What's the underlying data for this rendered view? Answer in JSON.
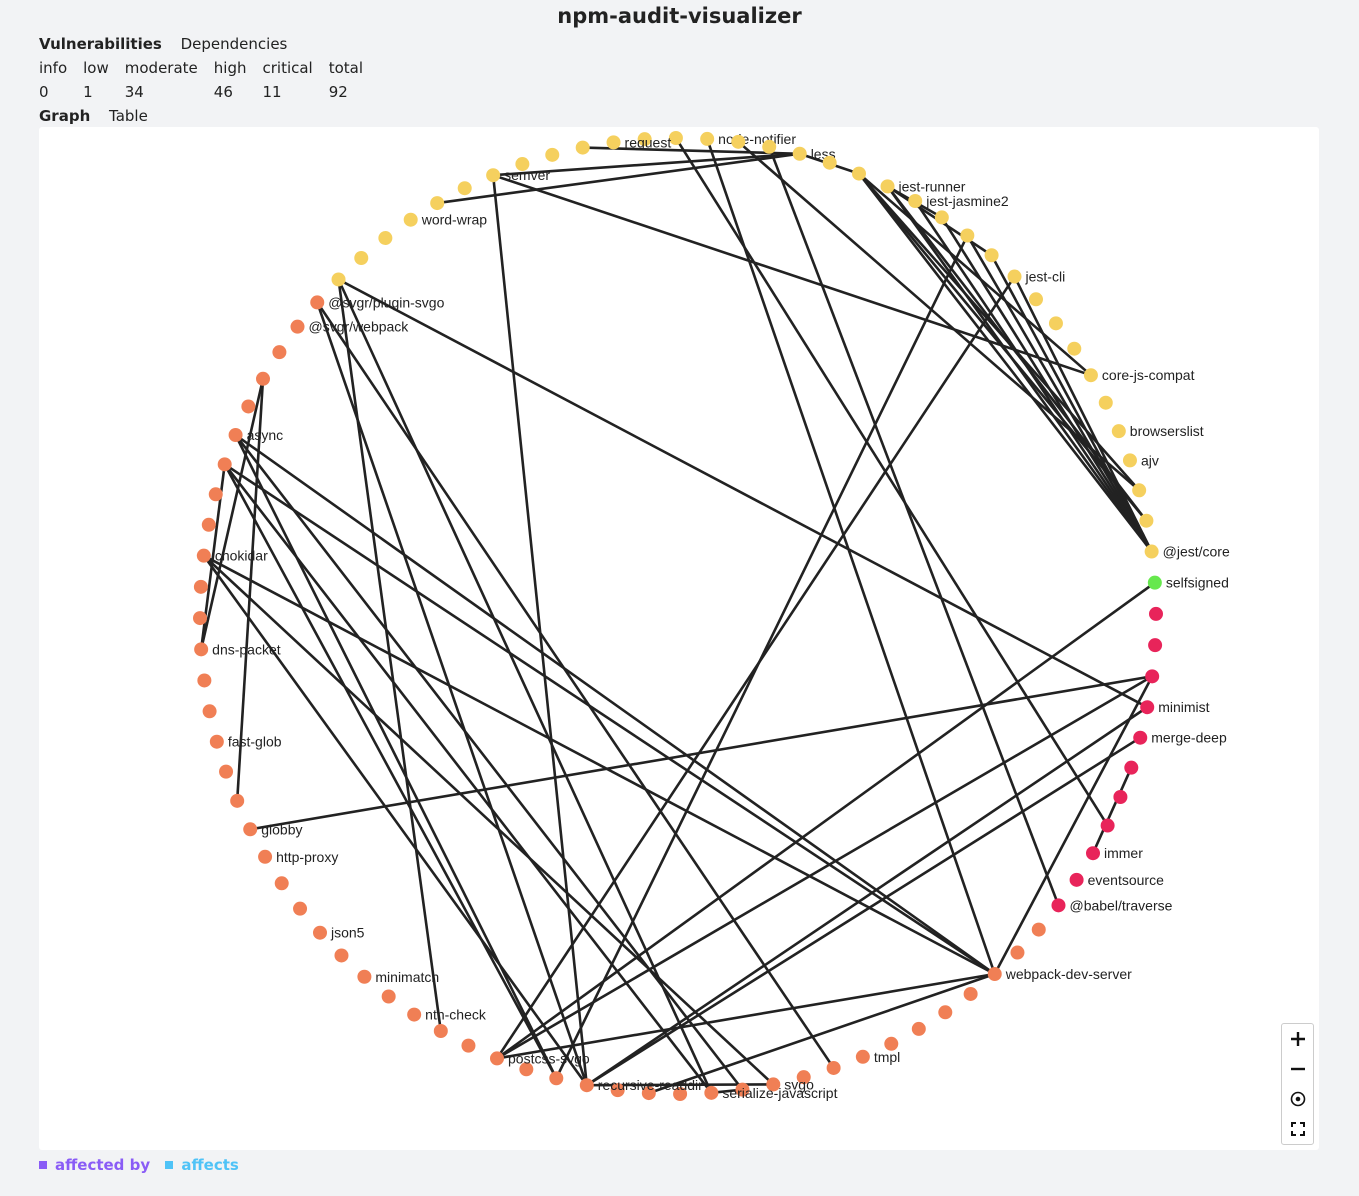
{
  "app": {
    "title": "npm-audit-visualizer"
  },
  "main_tabs": [
    {
      "label": "Vulnerabilities",
      "active": true
    },
    {
      "label": "Dependencies",
      "active": false
    }
  ],
  "stats": {
    "headers": [
      "info",
      "low",
      "moderate",
      "high",
      "critical",
      "total"
    ],
    "values": [
      "0",
      "1",
      "34",
      "46",
      "11",
      "92"
    ]
  },
  "view_tabs": [
    {
      "label": "Graph",
      "active": true
    },
    {
      "label": "Table",
      "active": false
    }
  ],
  "graph": {
    "colors": {
      "low": "#f5d05e",
      "moderate": "#f07f55",
      "high": "#e8245a",
      "info": "#66e84d",
      "edge": "#222222"
    },
    "nodes": [
      {
        "label": "",
        "severity": "low"
      },
      {
        "label": "",
        "severity": "low"
      },
      {
        "label": "node-notifier",
        "severity": "low"
      },
      {
        "label": "",
        "severity": "low"
      },
      {
        "label": "",
        "severity": "low"
      },
      {
        "label": "less",
        "severity": "low"
      },
      {
        "label": "",
        "severity": "low"
      },
      {
        "label": "",
        "severity": "low"
      },
      {
        "label": "jest-runner",
        "severity": "low"
      },
      {
        "label": "jest-jasmine2",
        "severity": "low"
      },
      {
        "label": "",
        "severity": "low"
      },
      {
        "label": "",
        "severity": "low"
      },
      {
        "label": "",
        "severity": "low"
      },
      {
        "label": "jest-cli",
        "severity": "low"
      },
      {
        "label": "",
        "severity": "low"
      },
      {
        "label": "",
        "severity": "low"
      },
      {
        "label": "",
        "severity": "low"
      },
      {
        "label": "core-js-compat",
        "severity": "low"
      },
      {
        "label": "",
        "severity": "low"
      },
      {
        "label": "browserslist",
        "severity": "low"
      },
      {
        "label": "ajv",
        "severity": "low"
      },
      {
        "label": "",
        "severity": "low"
      },
      {
        "label": "",
        "severity": "low"
      },
      {
        "label": "@jest/core",
        "severity": "low"
      },
      {
        "label": "selfsigned",
        "severity": "info"
      },
      {
        "label": "",
        "severity": "high"
      },
      {
        "label": "",
        "severity": "high"
      },
      {
        "label": "",
        "severity": "high"
      },
      {
        "label": "minimist",
        "severity": "high"
      },
      {
        "label": "merge-deep",
        "severity": "high"
      },
      {
        "label": "",
        "severity": "high"
      },
      {
        "label": "",
        "severity": "high"
      },
      {
        "label": "",
        "severity": "high"
      },
      {
        "label": "immer",
        "severity": "high"
      },
      {
        "label": "eventsource",
        "severity": "high"
      },
      {
        "label": "@babel/traverse",
        "severity": "high"
      },
      {
        "label": "",
        "severity": "moderate"
      },
      {
        "label": "",
        "severity": "moderate"
      },
      {
        "label": "webpack-dev-server",
        "severity": "moderate"
      },
      {
        "label": "",
        "severity": "moderate"
      },
      {
        "label": "",
        "severity": "moderate"
      },
      {
        "label": "",
        "severity": "moderate"
      },
      {
        "label": "",
        "severity": "moderate"
      },
      {
        "label": "tmpl",
        "severity": "moderate"
      },
      {
        "label": "",
        "severity": "moderate"
      },
      {
        "label": "",
        "severity": "moderate"
      },
      {
        "label": "svgo",
        "severity": "moderate"
      },
      {
        "label": "",
        "severity": "moderate"
      },
      {
        "label": "serialize-javascript",
        "severity": "moderate"
      },
      {
        "label": "",
        "severity": "moderate"
      },
      {
        "label": "",
        "severity": "moderate"
      },
      {
        "label": "",
        "severity": "moderate"
      },
      {
        "label": "recursive-readdir",
        "severity": "moderate"
      },
      {
        "label": "",
        "severity": "moderate"
      },
      {
        "label": "",
        "severity": "moderate"
      },
      {
        "label": "postcss-svgo",
        "severity": "moderate"
      },
      {
        "label": "",
        "severity": "moderate"
      },
      {
        "label": "",
        "severity": "moderate"
      },
      {
        "label": "nth-check",
        "severity": "moderate"
      },
      {
        "label": "",
        "severity": "moderate"
      },
      {
        "label": "minimatch",
        "severity": "moderate"
      },
      {
        "label": "",
        "severity": "moderate"
      },
      {
        "label": "json5",
        "severity": "moderate"
      },
      {
        "label": "",
        "severity": "moderate"
      },
      {
        "label": "",
        "severity": "moderate"
      },
      {
        "label": "http-proxy",
        "severity": "moderate"
      },
      {
        "label": "globby",
        "severity": "moderate"
      },
      {
        "label": "",
        "severity": "moderate"
      },
      {
        "label": "",
        "severity": "moderate"
      },
      {
        "label": "fast-glob",
        "severity": "moderate"
      },
      {
        "label": "",
        "severity": "moderate"
      },
      {
        "label": "",
        "severity": "moderate"
      },
      {
        "label": "dns-packet",
        "severity": "moderate"
      },
      {
        "label": "",
        "severity": "moderate"
      },
      {
        "label": "",
        "severity": "moderate"
      },
      {
        "label": "chokidar",
        "severity": "moderate"
      },
      {
        "label": "",
        "severity": "moderate"
      },
      {
        "label": "",
        "severity": "moderate"
      },
      {
        "label": "",
        "severity": "moderate"
      },
      {
        "label": "async",
        "severity": "moderate"
      },
      {
        "label": "",
        "severity": "moderate"
      },
      {
        "label": "",
        "severity": "moderate"
      },
      {
        "label": "",
        "severity": "moderate"
      },
      {
        "label": "@svgr/webpack",
        "severity": "moderate"
      },
      {
        "label": "@svgr/plugin-svgo",
        "severity": "moderate"
      },
      {
        "label": "",
        "severity": "low"
      },
      {
        "label": "",
        "severity": "low"
      },
      {
        "label": "",
        "severity": "low"
      },
      {
        "label": "word-wrap",
        "severity": "low"
      },
      {
        "label": "",
        "severity": "low"
      },
      {
        "label": "",
        "severity": "low"
      },
      {
        "label": "semver",
        "severity": "low"
      },
      {
        "label": "",
        "severity": "low"
      },
      {
        "label": "",
        "severity": "low"
      },
      {
        "label": "",
        "severity": "low"
      },
      {
        "label": "request",
        "severity": "low"
      }
    ],
    "edges": [
      [
        5,
        91
      ],
      [
        5,
        94
      ],
      [
        5,
        89
      ],
      [
        5,
        7
      ],
      [
        96,
        91
      ],
      [
        96,
        2
      ],
      [
        96,
        47
      ],
      [
        7,
        23
      ],
      [
        7,
        21
      ],
      [
        7,
        22
      ],
      [
        7,
        17
      ],
      [
        8,
        23
      ],
      [
        8,
        22
      ],
      [
        9,
        23
      ],
      [
        10,
        23
      ],
      [
        11,
        23
      ],
      [
        12,
        23
      ],
      [
        13,
        23
      ],
      [
        8,
        10
      ],
      [
        8,
        12
      ],
      [
        3,
        21
      ],
      [
        4,
        35
      ],
      [
        1,
        32
      ],
      [
        2,
        38
      ],
      [
        91,
        52
      ],
      [
        96,
        52
      ],
      [
        13,
        55
      ],
      [
        11,
        53
      ],
      [
        91,
        17
      ],
      [
        75,
        38
      ],
      [
        75,
        46
      ],
      [
        75,
        52
      ],
      [
        81,
        67
      ],
      [
        81,
        72
      ],
      [
        78,
        72
      ],
      [
        78,
        38
      ],
      [
        85,
        28
      ],
      [
        85,
        57
      ],
      [
        85,
        48
      ],
      [
        84,
        52
      ],
      [
        84,
        44
      ],
      [
        79,
        53
      ],
      [
        79,
        38
      ],
      [
        79,
        47
      ],
      [
        78,
        53
      ],
      [
        66,
        27
      ],
      [
        55,
        24
      ],
      [
        55,
        27
      ],
      [
        52,
        29
      ],
      [
        38,
        27
      ],
      [
        33,
        30
      ],
      [
        52,
        28
      ],
      [
        55,
        38
      ],
      [
        47,
        48
      ],
      [
        50,
        38
      ],
      [
        46,
        52
      ],
      [
        78,
        48
      ]
    ]
  },
  "zoom": {
    "in_icon": "plus-icon",
    "out_icon": "minus-icon",
    "reset_icon": "target-icon",
    "fit_icon": "fullscreen-icon"
  },
  "legend": [
    {
      "label": "affected by",
      "color": "#8a5cf6"
    },
    {
      "label": "affects",
      "color": "#4fc3f7"
    }
  ]
}
